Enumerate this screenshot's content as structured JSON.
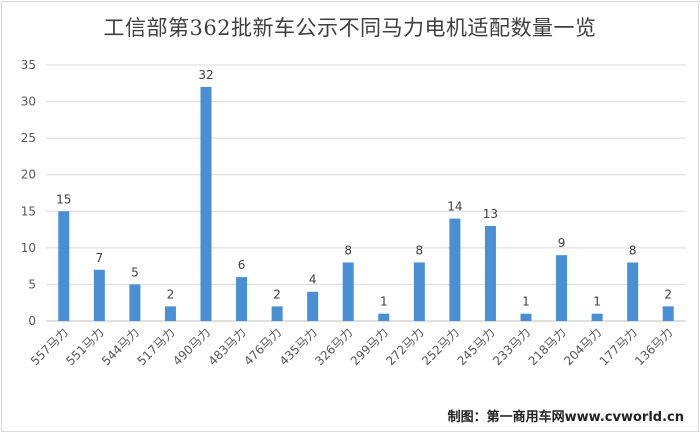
{
  "chart_data": {
    "type": "bar",
    "title": "工信部第362批新车公示不同马力电机适配数量一览",
    "categories": [
      "557马力",
      "551马力",
      "544马力",
      "517马力",
      "490马力",
      "483马力",
      "476马力",
      "435马力",
      "326马力",
      "299马力",
      "272马力",
      "252马力",
      "245马力",
      "233马力",
      "218马力",
      "204马力",
      "177马力",
      "136马力"
    ],
    "values": [
      15,
      7,
      5,
      2,
      32,
      6,
      2,
      4,
      8,
      1,
      8,
      14,
      13,
      1,
      9,
      1,
      8,
      2
    ],
    "ylim": [
      0,
      35
    ],
    "yticks": [
      0,
      5,
      10,
      15,
      20,
      25,
      30,
      35
    ],
    "xlabel": "",
    "ylabel": "",
    "grid": true,
    "bar_color": "#4a8fd3"
  },
  "credit": "制图：第一商用车网www.cvworld.cn"
}
